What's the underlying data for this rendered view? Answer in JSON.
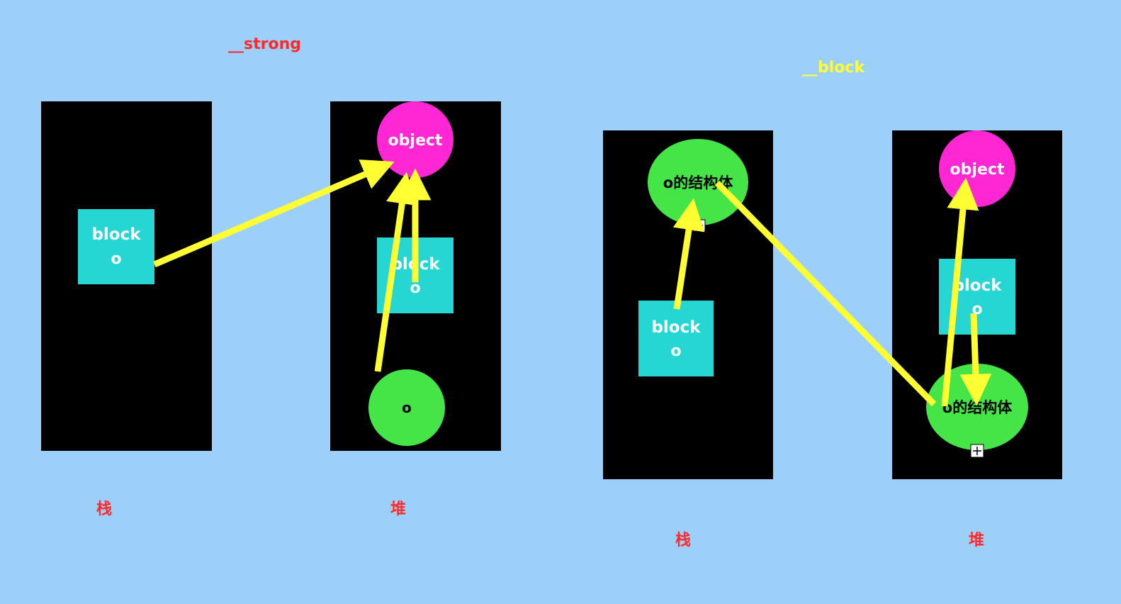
{
  "colors": {
    "background": "#9dcffb",
    "panel": "#000000",
    "block_box": "#26d6d2",
    "object_circle": "#ff26d4",
    "struct_ellipse": "#45e548",
    "arrow": "#ffff33",
    "title_strong": "#ff2a2a",
    "title_block": "#ffff33",
    "caption": "#ff2a2a"
  },
  "strong_diagram": {
    "title": "__strong",
    "stack": {
      "caption": "栈",
      "block_label": "block",
      "block_sub": "o"
    },
    "heap": {
      "caption": "堆",
      "object_label": "object",
      "block_label": "block",
      "block_sub": "o",
      "o_label": "o"
    }
  },
  "block_diagram": {
    "title": "__block",
    "stack": {
      "caption": "栈",
      "struct_label": "o的结构体",
      "block_label": "block",
      "block_sub": "o"
    },
    "heap": {
      "caption": "堆",
      "object_label": "object",
      "block_label": "block",
      "block_sub": "o",
      "struct_label": "o的结构体"
    }
  },
  "icons": {
    "expand_marker": "plus-box-icon"
  }
}
